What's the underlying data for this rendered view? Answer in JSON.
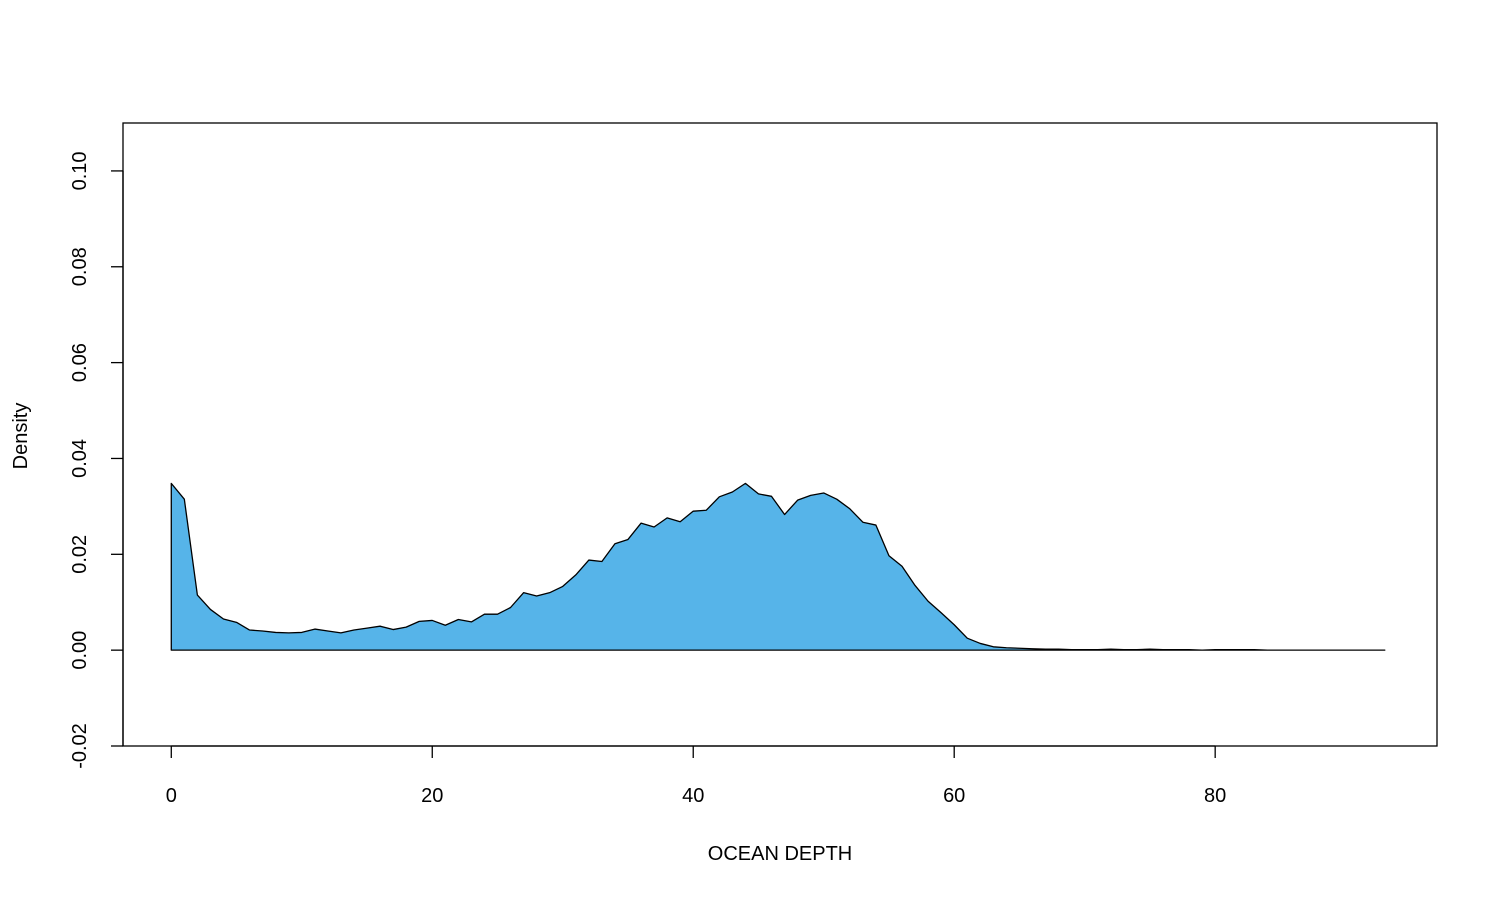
{
  "chart_data": {
    "type": "area",
    "title": "",
    "xlabel": "OCEAN DEPTH",
    "ylabel": "Density",
    "xlim": [
      -3.7,
      97.0
    ],
    "ylim": [
      -0.02,
      0.11
    ],
    "x_ticks": [
      0,
      20,
      40,
      60,
      80
    ],
    "x_tick_labels": [
      "0",
      "20",
      "40",
      "60",
      "80"
    ],
    "y_ticks": [
      -0.02,
      0.0,
      0.02,
      0.04,
      0.06,
      0.08,
      0.1
    ],
    "y_tick_labels": [
      "-0.02",
      "0.00",
      "0.02",
      "0.04",
      "0.06",
      "0.08",
      "0.10"
    ],
    "grid": false,
    "legend": "none",
    "fill_color": "#56B4E9",
    "line_color": "#000000",
    "series": [
      {
        "x": [
          0,
          1,
          2,
          3,
          4,
          5,
          6,
          7,
          8,
          9,
          10,
          11,
          12,
          13,
          14,
          15,
          16,
          17,
          18,
          19,
          20,
          21,
          22,
          23,
          24,
          25,
          26,
          27,
          28,
          29,
          30,
          31,
          32,
          33,
          34,
          35,
          36,
          37,
          38,
          39,
          40,
          41,
          42,
          43,
          44,
          45,
          46,
          47,
          48,
          49,
          50,
          51,
          52,
          53,
          54,
          55,
          56,
          57,
          58,
          59,
          60,
          61,
          62,
          63,
          64,
          65,
          66,
          67,
          68,
          69,
          70,
          71,
          72,
          73,
          74,
          75,
          76,
          77,
          78,
          79,
          80,
          81,
          82,
          83,
          84,
          85,
          86,
          87,
          88,
          89,
          90,
          91,
          92,
          93
        ],
        "values": [
          0.0348,
          0.0315,
          0.0115,
          0.0085,
          0.0065,
          0.0058,
          0.0042,
          0.004,
          0.0037,
          0.0036,
          0.0037,
          0.0044,
          0.004,
          0.0036,
          0.0042,
          0.0046,
          0.005,
          0.0043,
          0.0048,
          0.006,
          0.0062,
          0.0052,
          0.0064,
          0.0059,
          0.0075,
          0.0075,
          0.0089,
          0.012,
          0.0113,
          0.012,
          0.0133,
          0.0157,
          0.0188,
          0.0185,
          0.0222,
          0.0231,
          0.0265,
          0.0257,
          0.0276,
          0.0268,
          0.029,
          0.0292,
          0.032,
          0.033,
          0.0348,
          0.0326,
          0.0321,
          0.0283,
          0.0313,
          0.0323,
          0.0328,
          0.0315,
          0.0295,
          0.0267,
          0.0261,
          0.0197,
          0.0175,
          0.0135,
          0.0102,
          0.0078,
          0.0053,
          0.0025,
          0.0014,
          0.0007,
          0.0005,
          0.0004,
          0.0003,
          0.0002,
          0.0002,
          0.0001,
          0.0001,
          0.0001,
          0.0002,
          0.0001,
          0.0001,
          0.0002,
          0.0001,
          0.0001,
          0.0001,
          0.0,
          0.0001,
          0.0001,
          0.0001,
          0.0001,
          0.0,
          0.0,
          0.0,
          0.0,
          0.0,
          0.0,
          0.0,
          0.0,
          0.0,
          0.0
        ]
      }
    ]
  }
}
